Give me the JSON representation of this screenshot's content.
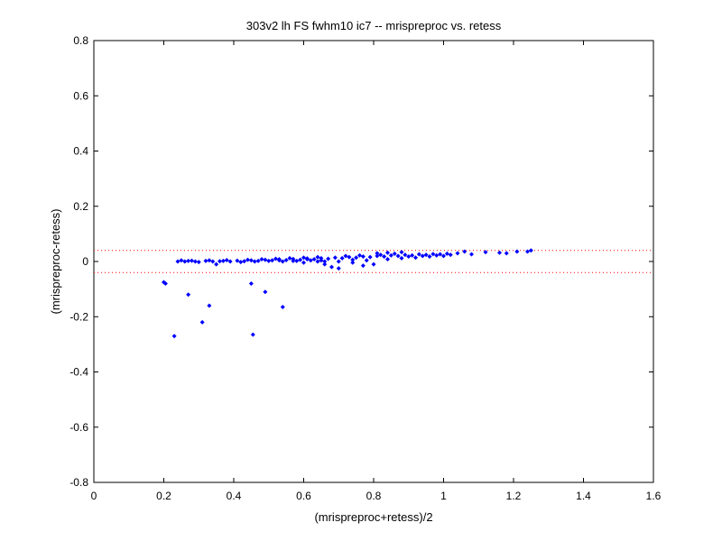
{
  "chart_data": {
    "type": "scatter",
    "title": "303v2 lh FS fwhm10 ic7 -- mrispreproc vs. retess",
    "xlabel": "(mrispreproc+retess)/2",
    "ylabel": "(mrispreproc-retess)",
    "xlim": [
      0,
      1.6
    ],
    "ylim": [
      -0.8,
      0.8
    ],
    "x_ticks": [
      "0",
      "0.2",
      "0.4",
      "0.6",
      "0.8",
      "1",
      "1.2",
      "1.4",
      "1.6"
    ],
    "y_ticks": [
      "0.8",
      "0.6",
      "0.4",
      "0.2",
      "0",
      "-0.2",
      "-0.4",
      "-0.6",
      "-0.8"
    ],
    "grid": false,
    "reference_lines": [
      0.04,
      -0.04
    ],
    "colors": {
      "points": "#0000ff",
      "reference_lines": "#ff0000",
      "axes": "#000000"
    },
    "series": [
      {
        "points": [
          [
            0.2,
            -0.075
          ],
          [
            0.205,
            -0.08
          ],
          [
            0.23,
            -0.27
          ],
          [
            0.27,
            -0.12
          ],
          [
            0.31,
            -0.22
          ],
          [
            0.33,
            -0.16
          ],
          [
            0.45,
            -0.08
          ],
          [
            0.455,
            -0.265
          ],
          [
            0.49,
            -0.11
          ],
          [
            0.54,
            -0.165
          ],
          [
            0.24,
            0.0
          ],
          [
            0.26,
            0.0
          ],
          [
            0.28,
            0.003
          ],
          [
            0.3,
            -0.002
          ],
          [
            0.32,
            0.002
          ],
          [
            0.34,
            0.0
          ],
          [
            0.35,
            -0.01
          ],
          [
            0.37,
            0.002
          ],
          [
            0.39,
            0.0
          ],
          [
            0.41,
            0.003
          ],
          [
            0.43,
            0.001
          ],
          [
            0.45,
            0.004
          ],
          [
            0.47,
            0.002
          ],
          [
            0.49,
            0.006
          ],
          [
            0.51,
            0.004
          ],
          [
            0.53,
            0.008
          ],
          [
            0.55,
            0.005
          ],
          [
            0.57,
            0.009
          ],
          [
            0.59,
            0.006
          ],
          [
            0.61,
            0.011
          ],
          [
            0.63,
            0.008
          ],
          [
            0.65,
            0.012
          ],
          [
            0.67,
            0.01
          ],
          [
            0.69,
            0.014
          ],
          [
            0.71,
            0.012
          ],
          [
            0.73,
            0.016
          ],
          [
            0.75,
            0.014
          ],
          [
            0.77,
            0.018
          ],
          [
            0.79,
            0.016
          ],
          [
            0.81,
            0.02
          ],
          [
            0.83,
            0.018
          ],
          [
            0.85,
            0.022
          ],
          [
            0.87,
            0.02
          ],
          [
            0.89,
            0.024
          ],
          [
            0.91,
            0.022
          ],
          [
            0.93,
            0.026
          ],
          [
            0.95,
            0.024
          ],
          [
            0.97,
            0.027
          ],
          [
            0.99,
            0.026
          ],
          [
            1.01,
            0.028
          ],
          [
            1.04,
            0.03
          ],
          [
            1.06,
            0.036
          ],
          [
            1.08,
            0.026
          ],
          [
            1.12,
            0.034
          ],
          [
            1.16,
            0.032
          ],
          [
            1.18,
            0.03
          ],
          [
            1.21,
            0.036
          ],
          [
            1.24,
            0.036
          ],
          [
            1.25,
            0.04
          ],
          [
            0.25,
            0.004
          ],
          [
            0.27,
            0.002
          ],
          [
            0.29,
            0.0
          ],
          [
            0.33,
            0.004
          ],
          [
            0.36,
            0.001
          ],
          [
            0.38,
            0.005
          ],
          [
            0.42,
            -0.002
          ],
          [
            0.44,
            0.006
          ],
          [
            0.46,
            0.0
          ],
          [
            0.48,
            0.008
          ],
          [
            0.5,
            0.002
          ],
          [
            0.52,
            0.01
          ],
          [
            0.54,
            0.0
          ],
          [
            0.56,
            0.012
          ],
          [
            0.58,
            0.002
          ],
          [
            0.6,
            0.014
          ],
          [
            0.62,
            0.004
          ],
          [
            0.64,
            0.016
          ],
          [
            0.66,
            0.0
          ],
          [
            0.68,
            -0.02
          ],
          [
            0.7,
            -0.025
          ],
          [
            0.66,
            -0.01
          ],
          [
            0.72,
            0.02
          ],
          [
            0.74,
            0.006
          ],
          [
            0.76,
            0.022
          ],
          [
            0.78,
            0.004
          ],
          [
            0.8,
            -0.01
          ],
          [
            0.82,
            0.024
          ],
          [
            0.84,
            0.008
          ],
          [
            0.86,
            0.028
          ],
          [
            0.88,
            0.012
          ],
          [
            0.9,
            0.018
          ],
          [
            0.92,
            0.014
          ],
          [
            0.94,
            0.02
          ],
          [
            0.96,
            0.018
          ],
          [
            0.98,
            0.022
          ],
          [
            1.0,
            0.02
          ],
          [
            1.02,
            0.024
          ],
          [
            0.77,
            -0.015
          ],
          [
            0.81,
            0.03
          ],
          [
            0.84,
            0.032
          ],
          [
            0.88,
            0.034
          ],
          [
            0.6,
            -0.004
          ],
          [
            0.64,
            0.0
          ],
          [
            0.7,
            0.0
          ],
          [
            0.74,
            -0.004
          ],
          [
            0.53,
            0.004
          ],
          [
            0.57,
            0.002
          ],
          [
            0.61,
            0.008
          ],
          [
            0.65,
            0.004
          ]
        ]
      }
    ]
  }
}
